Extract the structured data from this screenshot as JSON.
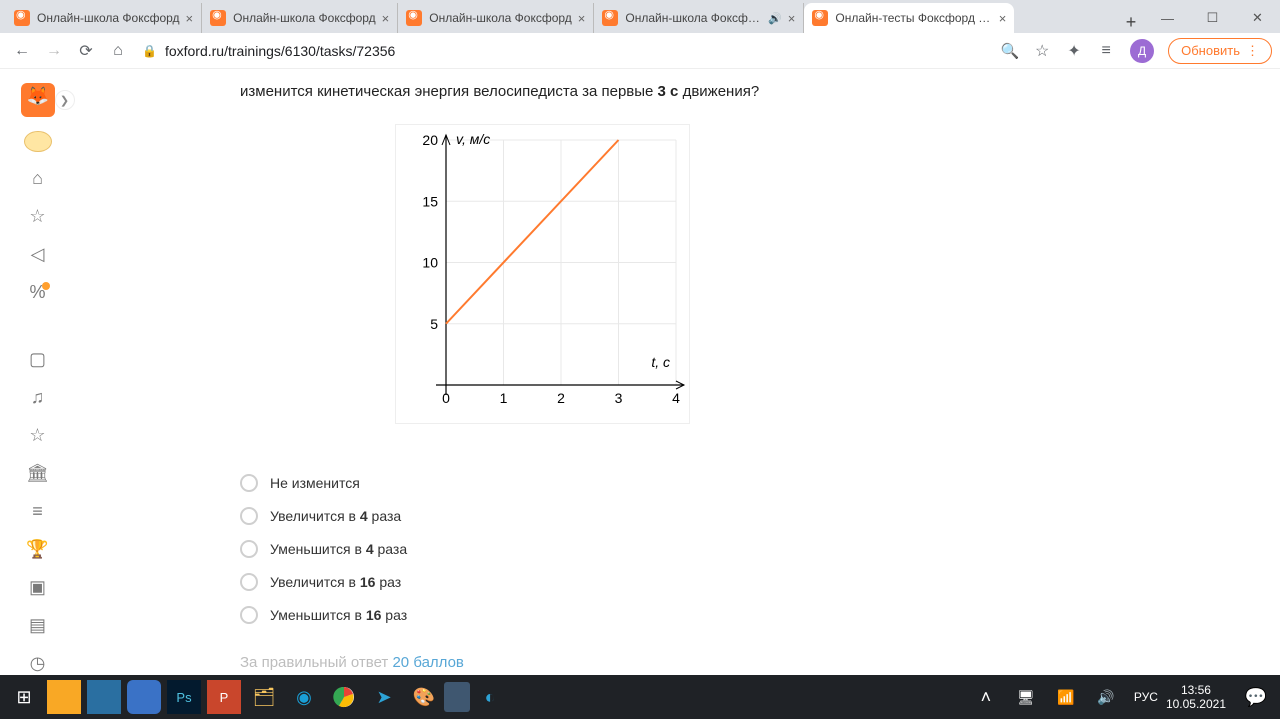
{
  "browser": {
    "tabs": [
      {
        "title": "Онлайн-школа Фоксфорд",
        "active": false,
        "sound": false
      },
      {
        "title": "Онлайн-школа Фоксфорд",
        "active": false,
        "sound": false
      },
      {
        "title": "Онлайн-школа Фоксфорд",
        "active": false,
        "sound": false
      },
      {
        "title": "Онлайн-школа Фоксфорд",
        "active": false,
        "sound": true
      },
      {
        "title": "Онлайн-тесты Фоксфорд | Ф",
        "active": true,
        "sound": false
      }
    ],
    "url": "foxford.ru/trainings/6130/tasks/72356",
    "update_label": "Обновить",
    "avatar_letter": "Д",
    "avatar_color": "#9c6cd4"
  },
  "question": {
    "text_prefix": "изменится кинетическая энергия велосипедиста за первые ",
    "bold": "3 с",
    "text_suffix": " движения?"
  },
  "chart": {
    "type": "line",
    "xlabel": "t, с",
    "ylabel": "v, м/с",
    "xlim": [
      0,
      4
    ],
    "ylim": [
      0,
      20
    ],
    "xticks": [
      0,
      1,
      2,
      3,
      4
    ],
    "yticks": [
      5,
      10,
      15,
      20
    ],
    "grid_color": "#e8e8e8",
    "line_color": "#ff7a2e",
    "line_width": 2,
    "axis_color": "#000000",
    "label_fontsize": 14,
    "tick_fontsize": 14,
    "series": {
      "x": [
        0,
        3
      ],
      "y": [
        5,
        20
      ]
    },
    "background": "#ffffff"
  },
  "options": [
    "Не изменится",
    "Увеличится в 4 раза",
    "Уменьшится в 4 раза",
    "Увеличится в 16 раз",
    "Уменьшится в 16 раз"
  ],
  "score": {
    "prefix": "За правильный ответ ",
    "value": "20 баллов"
  },
  "taskbar": {
    "lang": "РУС",
    "time": "13:56",
    "date": "10.05.2021"
  }
}
